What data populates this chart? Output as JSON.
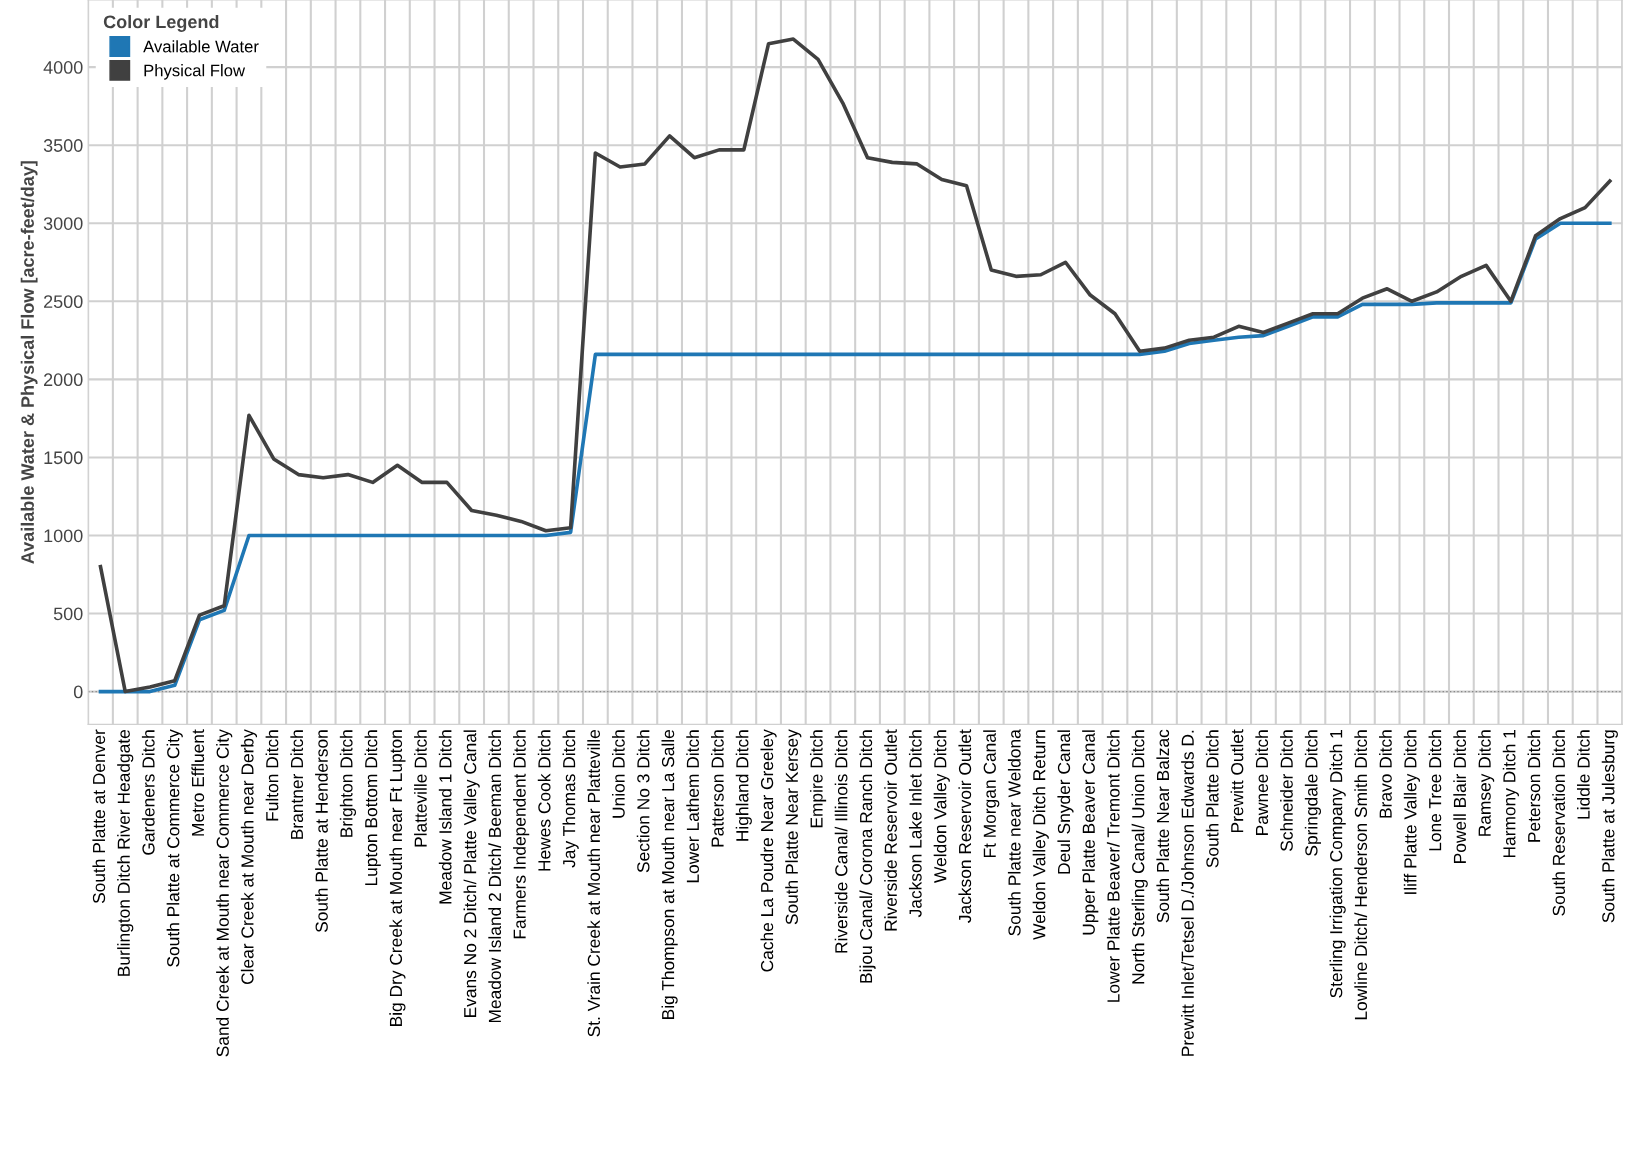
{
  "chart_data": {
    "type": "line",
    "ylabel": "Available Water & Physical Flow [acre-feet/day]",
    "legend_title": "Color Legend",
    "legend": "top left",
    "grid": true,
    "marker": "none",
    "line_style": "solid",
    "categories": [
      "South Platte at Denver",
      "Burlington Ditch River Headgate",
      "Gardeners Ditch",
      "South Platte at Commerce City",
      "Metro Effluent",
      "Sand Creek at Mouth near Commerce City",
      "Clear Creek at Mouth near Derby",
      "Fulton Ditch",
      "Brantner Ditch",
      "South Platte at Henderson",
      "Brighton Ditch",
      "Lupton Bottom Ditch",
      "Big Dry Creek at Mouth near Ft Lupton",
      "Platteville Ditch",
      "Meadow Island 1 Ditch",
      "Evans No 2 Ditch/ Platte Valley Canal",
      "Meadow Island 2 Ditch/ Beeman Ditch",
      "Farmers Independent Ditch",
      "Hewes Cook Ditch",
      "Jay Thomas Ditch",
      "St. Vrain Creek at Mouth near Platteville",
      "Union Ditch",
      "Section No 3 Ditch",
      "Big Thompson at Mouth near La Salle",
      "Lower Lathem Ditch",
      "Patterson Ditch",
      "Highland Ditch",
      "Cache La Poudre Near Greeley",
      "South Platte Near Kersey",
      "Empire Ditch",
      "Riverside Canal/ Illinois Ditch",
      "Bijou Canal/ Corona Ranch Ditch",
      "Riverside Reservoir Outlet",
      "Jackson Lake Inlet Ditch",
      "Weldon Valley Ditch",
      "Jackson Reservoir Outlet",
      "Ft Morgan Canal",
      "South Platte near Weldona",
      "Weldon Valley Ditch Return",
      "Deul Snyder Canal",
      "Upper Platte Beaver Canal",
      "Lower Platte Beaver/ Tremont Ditch",
      "North Sterling Canal/ Union Ditch",
      "South Platte Near Balzac",
      "Prewitt Inlet/Tetsel D./Johnson Edwards D.",
      "South Platte Ditch",
      "Prewitt Outlet",
      "Pawnee Ditch",
      "Schneider Ditch",
      "Springdale Ditch",
      "Sterling Irrigation Company Ditch 1",
      "Lowline Ditch/ Henderson Smith Ditch",
      "Bravo Ditch",
      "Iliff Platte Valley Ditch",
      "Lone Tree Ditch",
      "Powell Blair Ditch",
      "Ramsey Ditch",
      "Harmony Ditch 1",
      "Peterson Ditch",
      "South Reservation Ditch",
      "Liddle Ditch",
      "South Platte at Julesburg"
    ],
    "series": [
      {
        "name": "Available Water",
        "color": "#1f77b4",
        "values": [
          0,
          0,
          0,
          40,
          460,
          520,
          1000,
          1000,
          1000,
          1000,
          1000,
          1000,
          1000,
          1000,
          1000,
          1000,
          1000,
          1000,
          1000,
          1020,
          2160,
          2160,
          2160,
          2160,
          2160,
          2160,
          2160,
          2160,
          2160,
          2160,
          2160,
          2160,
          2160,
          2160,
          2160,
          2160,
          2160,
          2160,
          2160,
          2160,
          2160,
          2160,
          2160,
          2180,
          2230,
          2250,
          2270,
          2280,
          2340,
          2400,
          2400,
          2480,
          2480,
          2480,
          2490,
          2490,
          2490,
          2490,
          2900,
          3000,
          3000,
          3000
        ]
      },
      {
        "name": "Physical Flow",
        "color": "#404040",
        "values": [
          800,
          0,
          30,
          70,
          490,
          550,
          1770,
          1490,
          1390,
          1370,
          1390,
          1340,
          1450,
          1340,
          1340,
          1160,
          1130,
          1090,
          1030,
          1050,
          3450,
          3360,
          3380,
          3560,
          3420,
          3470,
          3470,
          4150,
          4180,
          4050,
          3770,
          3420,
          3390,
          3380,
          3280,
          3240,
          2700,
          2660,
          2670,
          2750,
          2540,
          2420,
          2180,
          2200,
          2250,
          2270,
          2340,
          2300,
          2360,
          2420,
          2420,
          2520,
          2580,
          2500,
          2560,
          2660,
          2730,
          2500,
          2920,
          3030,
          3100,
          3270
        ]
      }
    ],
    "ylim": [
      -210,
      4430
    ],
    "yticks": [
      0,
      500,
      1000,
      1500,
      2000,
      2500,
      3000,
      3500,
      4000
    ],
    "ref_lines": [
      {
        "axis": "y",
        "value": 0,
        "color": "#888888",
        "line_style": "dotted"
      }
    ]
  }
}
